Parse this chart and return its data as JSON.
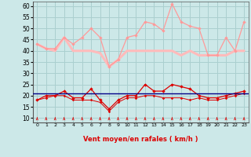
{
  "x": [
    0,
    1,
    2,
    3,
    4,
    5,
    6,
    7,
    8,
    9,
    10,
    11,
    12,
    13,
    14,
    15,
    16,
    17,
    18,
    19,
    20,
    21,
    22,
    23
  ],
  "rafales": [
    43,
    41,
    41,
    46,
    43,
    46,
    50,
    46,
    33,
    36,
    46,
    47,
    53,
    52,
    49,
    61,
    53,
    51,
    50,
    38,
    38,
    46,
    40,
    53
  ],
  "moyenne_rafales": [
    43,
    41,
    40,
    46,
    40,
    40,
    40,
    39,
    33,
    36,
    40,
    40,
    40,
    40,
    40,
    40,
    38,
    40,
    38,
    38,
    38,
    38,
    40,
    40
  ],
  "vent_moyen": [
    18,
    20,
    20,
    22,
    19,
    19,
    23,
    18,
    14,
    18,
    20,
    20,
    25,
    22,
    22,
    25,
    24,
    23,
    20,
    19,
    19,
    20,
    21,
    22
  ],
  "vent_min": [
    18,
    19,
    20,
    20,
    18,
    18,
    18,
    17,
    13,
    17,
    19,
    19,
    20,
    20,
    19,
    19,
    19,
    18,
    19,
    18,
    18,
    19,
    20,
    21
  ],
  "trend_value": 21,
  "bg_color": "#cce8e8",
  "grid_color": "#aacfcf",
  "color_rafales": "#ff9999",
  "color_moyenne": "#ffbbbb",
  "color_vent": "#dd0000",
  "color_trend": "#000088",
  "xlabel": "Vent moyen/en rafales ( km/h )",
  "yticks": [
    10,
    15,
    20,
    25,
    30,
    35,
    40,
    45,
    50,
    55,
    60
  ],
  "ylim": [
    8,
    62
  ],
  "xlim": [
    -0.5,
    23.5
  ]
}
